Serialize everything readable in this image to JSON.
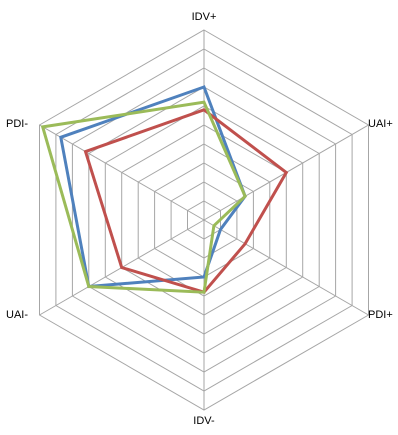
{
  "chart_data": {
    "type": "radar",
    "axes": [
      "IDV+",
      "UAI+",
      "PDI+",
      "IDV-",
      "UAI-",
      "PDI-"
    ],
    "levels": 10,
    "range": [
      0,
      10
    ],
    "grid": true,
    "legend": "none",
    "series": [
      {
        "color": "#4f81bd",
        "values": [
          7,
          2.5,
          1,
          3,
          7,
          8.7
        ]
      },
      {
        "color": "#c0504d",
        "values": [
          5.8,
          5,
          2.5,
          3.8,
          5,
          7.2
        ]
      },
      {
        "color": "#9bbb59",
        "values": [
          6.2,
          2.5,
          0.6,
          3.8,
          7,
          9.8
        ]
      }
    ]
  }
}
